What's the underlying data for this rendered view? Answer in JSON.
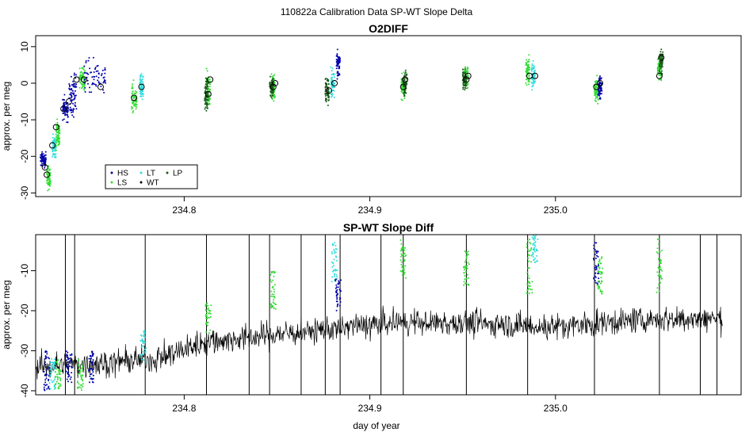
{
  "figure_title": "110822a   Calibration Data SP-WT Slope Delta",
  "colors": {
    "HS": "#0000aa",
    "LS": "#33dd33",
    "LT": "#33dddd",
    "WT": "#000000",
    "LP": "#1a5a1a",
    "frame": "#000000",
    "line": "#000000"
  },
  "legend": {
    "position": "bottom-left",
    "entries": [
      {
        "key": "HS",
        "label": "HS"
      },
      {
        "key": "LT",
        "label": "LT"
      },
      {
        "key": "LP",
        "label": "LP"
      },
      {
        "key": "LS",
        "label": "LS"
      },
      {
        "key": "WT",
        "label": "WT"
      }
    ]
  },
  "chart_data": [
    {
      "type": "scatter",
      "title": "O2DIFF",
      "xlabel": "",
      "ylabel": "approx. per meg",
      "xlim": [
        234.72,
        235.1
      ],
      "ylim": [
        -31,
        13
      ],
      "xticks": [
        "234.8",
        "234.9",
        "235.0"
      ],
      "xtick_values": [
        234.8,
        234.9,
        235.0
      ],
      "yticks": [
        "-30",
        "-20",
        "-10",
        "0",
        "10"
      ],
      "ytick_values": [
        -30,
        -20,
        -10,
        0,
        10
      ],
      "clusters": [
        {
          "series": "HS",
          "x": 234.724,
          "y": -21,
          "width": 0.003,
          "spread": 2
        },
        {
          "series": "LS",
          "x": 234.727,
          "y": -26,
          "width": 0.002,
          "spread": 3
        },
        {
          "series": "LT",
          "x": 234.73,
          "y": -17,
          "width": 0.002,
          "spread": 3
        },
        {
          "series": "LS",
          "x": 234.732,
          "y": -14,
          "width": 0.002,
          "spread": 4
        },
        {
          "series": "HS",
          "x": 234.736,
          "y": -7,
          "width": 0.003,
          "spread": 3
        },
        {
          "series": "HS",
          "x": 234.74,
          "y": -3,
          "width": 0.004,
          "spread": 6
        },
        {
          "series": "LS",
          "x": 234.745,
          "y": 1,
          "width": 0.003,
          "spread": 3
        },
        {
          "series": "HS",
          "x": 234.752,
          "y": 1,
          "width": 0.012,
          "spread": 5
        },
        {
          "series": "LS",
          "x": 234.773,
          "y": -4,
          "width": 0.003,
          "spread": 4
        },
        {
          "series": "LT",
          "x": 234.777,
          "y": -1,
          "width": 0.002,
          "spread": 3
        },
        {
          "series": "LS",
          "x": 234.813,
          "y": -2,
          "width": 0.002,
          "spread": 5
        },
        {
          "series": "LP",
          "x": 234.812,
          "y": -3,
          "width": 0.002,
          "spread": 4
        },
        {
          "series": "LS",
          "x": 234.848,
          "y": -1,
          "width": 0.002,
          "spread": 4
        },
        {
          "series": "LP",
          "x": 234.847,
          "y": -1,
          "width": 0.002,
          "spread": 3
        },
        {
          "series": "LP",
          "x": 234.877,
          "y": -2,
          "width": 0.002,
          "spread": 4
        },
        {
          "series": "LT",
          "x": 234.88,
          "y": 0,
          "width": 0.002,
          "spread": 4
        },
        {
          "series": "HS",
          "x": 234.883,
          "y": 5,
          "width": 0.002,
          "spread": 3
        },
        {
          "series": "LS",
          "x": 234.918,
          "y": -1,
          "width": 0.002,
          "spread": 3
        },
        {
          "series": "LP",
          "x": 234.919,
          "y": 0,
          "width": 0.002,
          "spread": 3
        },
        {
          "series": "LS",
          "x": 234.952,
          "y": 2,
          "width": 0.002,
          "spread": 3
        },
        {
          "series": "LP",
          "x": 234.951,
          "y": 1,
          "width": 0.002,
          "spread": 3
        },
        {
          "series": "LS",
          "x": 234.985,
          "y": 3,
          "width": 0.002,
          "spread": 4
        },
        {
          "series": "LT",
          "x": 234.988,
          "y": 2,
          "width": 0.002,
          "spread": 3
        },
        {
          "series": "LS",
          "x": 235.022,
          "y": -2,
          "width": 0.002,
          "spread": 3
        },
        {
          "series": "HS",
          "x": 235.024,
          "y": -1,
          "width": 0.002,
          "spread": 3
        },
        {
          "series": "LS",
          "x": 235.056,
          "y": 4,
          "width": 0.002,
          "spread": 4
        },
        {
          "series": "LP",
          "x": 235.057,
          "y": 6,
          "width": 0.002,
          "spread": 3
        }
      ],
      "circles": [
        {
          "x": 234.725,
          "y": -23
        },
        {
          "x": 234.726,
          "y": -25
        },
        {
          "x": 234.729,
          "y": -17
        },
        {
          "x": 234.731,
          "y": -12
        },
        {
          "x": 234.735,
          "y": -7
        },
        {
          "x": 234.738,
          "y": -5
        },
        {
          "x": 234.742,
          "y": 1
        },
        {
          "x": 234.746,
          "y": 1
        },
        {
          "x": 234.755,
          "y": -1
        },
        {
          "x": 234.773,
          "y": -4
        },
        {
          "x": 234.777,
          "y": -1
        },
        {
          "x": 234.813,
          "y": -3
        },
        {
          "x": 234.814,
          "y": 1
        },
        {
          "x": 234.848,
          "y": -1
        },
        {
          "x": 234.849,
          "y": 0
        },
        {
          "x": 234.878,
          "y": -2
        },
        {
          "x": 234.881,
          "y": 0
        },
        {
          "x": 234.918,
          "y": -1
        },
        {
          "x": 234.919,
          "y": 1
        },
        {
          "x": 234.952,
          "y": 1
        },
        {
          "x": 234.953,
          "y": 2
        },
        {
          "x": 234.986,
          "y": 2
        },
        {
          "x": 234.989,
          "y": 2
        },
        {
          "x": 235.022,
          "y": -1
        },
        {
          "x": 235.024,
          "y": 0
        },
        {
          "x": 235.056,
          "y": 2
        },
        {
          "x": 235.057,
          "y": 7
        }
      ]
    },
    {
      "type": "line",
      "title": "SP-WT Slope Diff",
      "xlabel": "day of year",
      "ylabel": "approx. per meg",
      "xlim": [
        234.72,
        235.1
      ],
      "ylim": [
        -41,
        -1
      ],
      "xticks": [
        "234.8",
        "234.9",
        "235.0"
      ],
      "xtick_values": [
        234.8,
        234.9,
        235.0
      ],
      "yticks": [
        "-40",
        "-30",
        "-20",
        "-10"
      ],
      "ytick_values": [
        -40,
        -30,
        -20,
        -10
      ],
      "x_start": 234.72,
      "x_end": 235.09,
      "trend": [
        {
          "x": 234.72,
          "y": -34
        },
        {
          "x": 234.76,
          "y": -33
        },
        {
          "x": 234.785,
          "y": -32
        },
        {
          "x": 234.81,
          "y": -28
        },
        {
          "x": 234.83,
          "y": -27
        },
        {
          "x": 234.87,
          "y": -25
        },
        {
          "x": 234.91,
          "y": -23
        },
        {
          "x": 234.95,
          "y": -23
        },
        {
          "x": 235.0,
          "y": -24
        },
        {
          "x": 235.05,
          "y": -22
        },
        {
          "x": 235.09,
          "y": -22
        }
      ],
      "noise_amplitude": 4,
      "spikes": [
        234.736,
        234.741,
        234.779,
        234.812,
        234.835,
        234.846,
        234.863,
        234.876,
        234.884,
        234.906,
        234.918,
        234.952,
        234.985,
        235.021,
        235.056,
        235.078,
        235.087
      ],
      "calibration_events": [
        {
          "series": "HS",
          "x": 234.726,
          "y_top": -30,
          "y_bottom": -40
        },
        {
          "series": "LT",
          "x": 234.729,
          "y_top": -32,
          "y_bottom": -40
        },
        {
          "series": "LS",
          "x": 234.732,
          "y_top": -32,
          "y_bottom": -40
        },
        {
          "series": "HS",
          "x": 234.738,
          "y_top": -30,
          "y_bottom": -38
        },
        {
          "series": "LS",
          "x": 234.744,
          "y_top": -32,
          "y_bottom": -40
        },
        {
          "series": "HS",
          "x": 234.75,
          "y_top": -30,
          "y_bottom": -38
        },
        {
          "series": "LT",
          "x": 234.778,
          "y_top": -25,
          "y_bottom": -33
        },
        {
          "series": "LS",
          "x": 234.813,
          "y_top": -18,
          "y_bottom": -26
        },
        {
          "series": "LS",
          "x": 234.848,
          "y_top": -10,
          "y_bottom": -20
        },
        {
          "series": "LT",
          "x": 234.881,
          "y_top": -3,
          "y_bottom": -13
        },
        {
          "series": "HS",
          "x": 234.883,
          "y_top": -12,
          "y_bottom": -20
        },
        {
          "series": "LS",
          "x": 234.918,
          "y_top": -2,
          "y_bottom": -12
        },
        {
          "series": "LS",
          "x": 234.952,
          "y_top": -5,
          "y_bottom": -14
        },
        {
          "series": "LS",
          "x": 234.986,
          "y_top": -1,
          "y_bottom": -16
        },
        {
          "series": "LT",
          "x": 234.989,
          "y_top": -1,
          "y_bottom": -8
        },
        {
          "series": "HS",
          "x": 235.022,
          "y_top": -3,
          "y_bottom": -14
        },
        {
          "series": "LS",
          "x": 235.024,
          "y_top": -6,
          "y_bottom": -16
        },
        {
          "series": "LS",
          "x": 235.056,
          "y_top": -2,
          "y_bottom": -16
        }
      ]
    }
  ]
}
